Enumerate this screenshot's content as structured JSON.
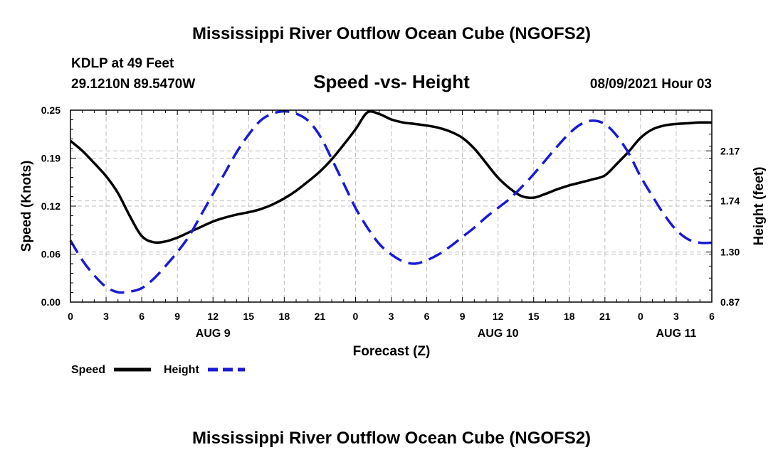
{
  "page": {
    "top_title": "Mississippi River Outflow Ocean Cube (NGOFS2)",
    "bottom_title": "Mississippi River Outflow Ocean Cube (NGOFS2)",
    "station": "KDLP at 49 Feet",
    "coords": "29.1210N  89.5470W",
    "subtitle": "Speed -vs- Height",
    "datetime": "08/09/2021 Hour 03"
  },
  "chart_data": {
    "type": "line",
    "title": "Speed -vs- Height",
    "xlabel": "Forecast (Z)",
    "ylabel": "Speed (Knots)",
    "y2label": "Height (feet)",
    "x_unit": "hours from 2021-08-09 00Z",
    "xlim": [
      0,
      54
    ],
    "ylim": [
      0.0,
      0.25
    ],
    "y2lim": [
      0.87,
      2.52
    ],
    "grid": true,
    "x_ticks": [
      {
        "x": 0,
        "label": "0"
      },
      {
        "x": 3,
        "label": "3"
      },
      {
        "x": 6,
        "label": "6"
      },
      {
        "x": 9,
        "label": "9"
      },
      {
        "x": 12,
        "label": "12"
      },
      {
        "x": 15,
        "label": "15"
      },
      {
        "x": 18,
        "label": "18"
      },
      {
        "x": 21,
        "label": "21"
      },
      {
        "x": 24,
        "label": "0"
      },
      {
        "x": 27,
        "label": "3"
      },
      {
        "x": 30,
        "label": "6"
      },
      {
        "x": 33,
        "label": "9"
      },
      {
        "x": 36,
        "label": "12"
      },
      {
        "x": 39,
        "label": "15"
      },
      {
        "x": 42,
        "label": "18"
      },
      {
        "x": 45,
        "label": "21"
      },
      {
        "x": 48,
        "label": "0"
      },
      {
        "x": 51,
        "label": "3"
      },
      {
        "x": 54,
        "label": "6"
      }
    ],
    "day_labels": [
      {
        "x": 12,
        "label": "AUG 9"
      },
      {
        "x": 36,
        "label": "AUG 10"
      },
      {
        "x": 51,
        "label": "AUG 11"
      }
    ],
    "y_ticks": [
      {
        "value": 0.0,
        "label": "0.00"
      },
      {
        "value": 0.0625,
        "label": "0.06"
      },
      {
        "value": 0.125,
        "label": "0.12"
      },
      {
        "value": 0.1875,
        "label": "0.19"
      },
      {
        "value": 0.25,
        "label": "0.25"
      }
    ],
    "y2_ticks": [
      {
        "value": 0.87,
        "label": "0.87"
      },
      {
        "value": 1.3,
        "label": "1.30"
      },
      {
        "value": 1.74,
        "label": "1.74"
      },
      {
        "value": 2.17,
        "label": "2.17"
      }
    ],
    "series": [
      {
        "name": "Speed",
        "axis": "left",
        "color": "#000000",
        "dashed": false,
        "x": [
          0,
          1,
          2,
          3,
          4,
          5,
          6,
          7,
          8,
          9,
          10,
          11,
          12,
          13,
          14,
          15,
          16,
          17,
          18,
          19,
          20,
          21,
          22,
          23,
          24,
          25,
          26,
          27,
          28,
          29,
          30,
          31,
          32,
          33,
          34,
          35,
          36,
          37,
          38,
          39,
          40,
          41,
          42,
          43,
          44,
          45,
          46,
          47,
          48,
          49,
          50,
          51,
          52,
          53,
          54
        ],
        "values": [
          0.21,
          0.197,
          0.181,
          0.164,
          0.142,
          0.112,
          0.086,
          0.078,
          0.079,
          0.084,
          0.091,
          0.098,
          0.105,
          0.11,
          0.114,
          0.117,
          0.121,
          0.127,
          0.135,
          0.145,
          0.157,
          0.17,
          0.186,
          0.205,
          0.225,
          0.247,
          0.245,
          0.238,
          0.234,
          0.232,
          0.23,
          0.227,
          0.222,
          0.214,
          0.2,
          0.181,
          0.162,
          0.148,
          0.138,
          0.136,
          0.141,
          0.147,
          0.152,
          0.156,
          0.16,
          0.165,
          0.18,
          0.196,
          0.214,
          0.225,
          0.23,
          0.232,
          0.233,
          0.234,
          0.234
        ]
      },
      {
        "name": "Height",
        "axis": "right",
        "color": "#1a1ad6",
        "dashed": true,
        "x": [
          0,
          1,
          2,
          3,
          4,
          5,
          6,
          7,
          8,
          9,
          10,
          11,
          12,
          13,
          14,
          15,
          16,
          17,
          18,
          19,
          20,
          21,
          22,
          23,
          24,
          25,
          26,
          27,
          28,
          29,
          30,
          31,
          32,
          33,
          34,
          35,
          36,
          37,
          38,
          39,
          40,
          41,
          42,
          43,
          44,
          45,
          46,
          47,
          48,
          49,
          50,
          51,
          52,
          53,
          54
        ],
        "values": [
          1.4,
          1.23,
          1.1,
          1.0,
          0.955,
          0.96,
          0.99,
          1.07,
          1.18,
          1.3,
          1.44,
          1.62,
          1.8,
          1.98,
          2.16,
          2.31,
          2.43,
          2.49,
          2.51,
          2.49,
          2.43,
          2.3,
          2.1,
          1.89,
          1.68,
          1.51,
          1.37,
          1.28,
          1.22,
          1.2,
          1.23,
          1.28,
          1.35,
          1.43,
          1.51,
          1.6,
          1.68,
          1.76,
          1.86,
          1.97,
          2.09,
          2.21,
          2.32,
          2.4,
          2.43,
          2.4,
          2.3,
          2.15,
          1.95,
          1.78,
          1.62,
          1.49,
          1.41,
          1.38,
          1.38
        ]
      }
    ],
    "legend": [
      {
        "name": "Speed",
        "color": "#000000",
        "dashed": false
      },
      {
        "name": "Height",
        "color": "#1a1ad6",
        "dashed": true
      }
    ]
  }
}
